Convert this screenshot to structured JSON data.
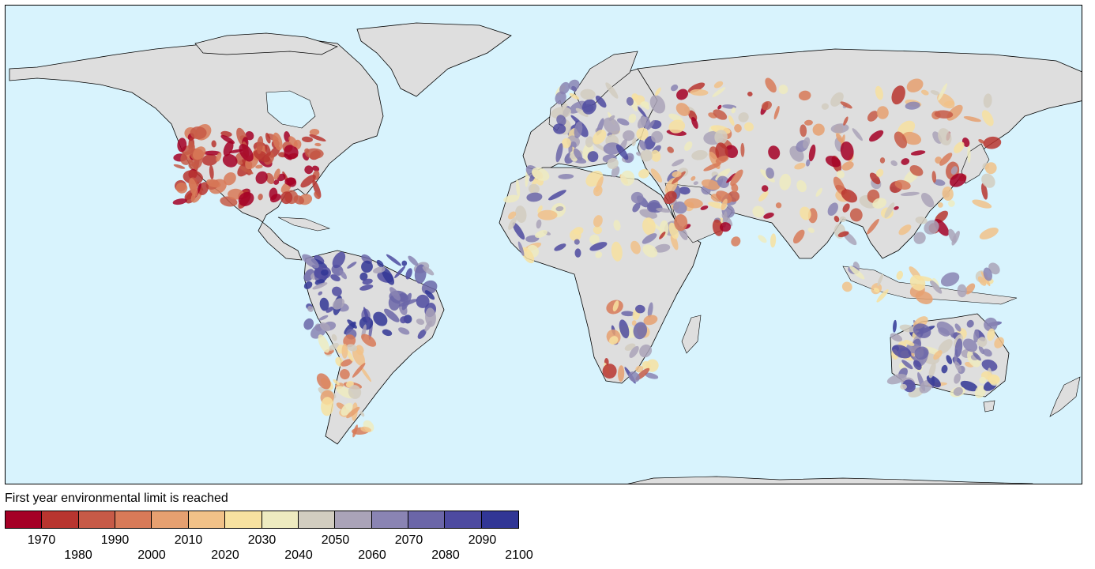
{
  "legend": {
    "title": "First year environmental limit is reached",
    "bins": [
      {
        "color": "#a50026"
      },
      {
        "color": "#b8352f"
      },
      {
        "color": "#c75a47"
      },
      {
        "color": "#d87a58"
      },
      {
        "color": "#e6a070"
      },
      {
        "color": "#f1c188"
      },
      {
        "color": "#f7e1a0"
      },
      {
        "color": "#eeebc0"
      },
      {
        "color": "#d2cdc0"
      },
      {
        "color": "#aaa3b8"
      },
      {
        "color": "#8a84b3"
      },
      {
        "color": "#6b66a8"
      },
      {
        "color": "#4d4aa0"
      },
      {
        "color": "#313695"
      }
    ],
    "labels_top_row": [
      "1970",
      "1990",
      "2010",
      "2030",
      "2050",
      "2070",
      "2090"
    ],
    "labels_bottom_row": [
      "1980",
      "2000",
      "2020",
      "2040",
      "2060",
      "2080",
      "2100"
    ]
  },
  "map": {
    "ocean_color": "#d8f3fd",
    "land_color": "#dedede",
    "border_color": "#555555",
    "coast_color": "#000000"
  }
}
